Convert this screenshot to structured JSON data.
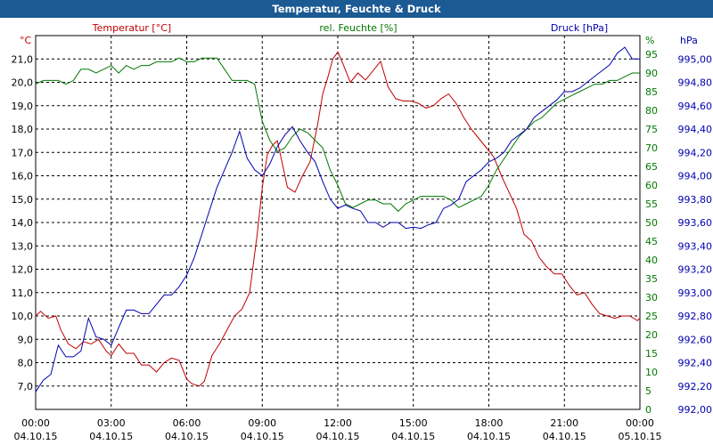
{
  "window": {
    "title": "Temperatur, Feuchte & Druck"
  },
  "colors": {
    "temperature": "#c00000",
    "humidity": "#007800",
    "pressure": "#0000b0",
    "grid": "#000000",
    "axis_text": "#000000"
  },
  "chart_data": {
    "type": "line",
    "title": "Temperatur, Feuchte & Druck",
    "grid": true,
    "x_axis": {
      "range_hours": [
        0,
        24
      ],
      "ticks": [
        {
          "h": 0,
          "time": "00:00",
          "date": "04.10.15"
        },
        {
          "h": 3,
          "time": "03:00",
          "date": "04.10.15"
        },
        {
          "h": 6,
          "time": "06:00",
          "date": "04.10.15"
        },
        {
          "h": 9,
          "time": "09:00",
          "date": "04.10.15"
        },
        {
          "h": 12,
          "time": "12:00",
          "date": "04.10.15"
        },
        {
          "h": 15,
          "time": "15:00",
          "date": "04.10.15"
        },
        {
          "h": 18,
          "time": "18:00",
          "date": "04.10.15"
        },
        {
          "h": 21,
          "time": "21:00",
          "date": "04.10.15"
        },
        {
          "h": 24,
          "time": "00:00",
          "date": "05.10.15"
        }
      ]
    },
    "axes": {
      "temperature": {
        "label": "Temperatur [°C]",
        "unit": "°C",
        "ylim": [
          6.0,
          22.0
        ],
        "ticks": [
          "7,0",
          "8,0",
          "9,0",
          "10,0",
          "11,0",
          "12,0",
          "13,0",
          "14,0",
          "15,0",
          "16,0",
          "17,0",
          "18,0",
          "19,0",
          "20,0",
          "21,0"
        ],
        "tick_values": [
          7,
          8,
          9,
          10,
          11,
          12,
          13,
          14,
          15,
          16,
          17,
          18,
          19,
          20,
          21
        ]
      },
      "humidity": {
        "label": "rel. Feuchte [%]",
        "unit": "%",
        "ylim": [
          0,
          100
        ],
        "ticks": [
          "0",
          "5",
          "10",
          "15",
          "20",
          "25",
          "30",
          "35",
          "40",
          "45",
          "50",
          "55",
          "60",
          "65",
          "70",
          "75",
          "80",
          "85",
          "90",
          "95"
        ],
        "tick_values": [
          0,
          5,
          10,
          15,
          20,
          25,
          30,
          35,
          40,
          45,
          50,
          55,
          60,
          65,
          70,
          75,
          80,
          85,
          90,
          95
        ]
      },
      "pressure": {
        "label": "Druck [hPa]",
        "unit": "hPa",
        "ylim": [
          992.0,
          995.2
        ],
        "ticks": [
          "992,00",
          "992,20",
          "992,40",
          "992,60",
          "992,80",
          "993,00",
          "993,20",
          "993,40",
          "993,60",
          "993,80",
          "994,00",
          "994,20",
          "994,40",
          "994,60",
          "994,80",
          "995,00"
        ],
        "tick_values": [
          992.0,
          992.2,
          992.4,
          992.6,
          992.8,
          993.0,
          993.2,
          993.4,
          993.6,
          993.8,
          994.0,
          994.2,
          994.4,
          994.6,
          994.8,
          995.0
        ]
      }
    },
    "series": [
      {
        "name": "Temperatur [°C]",
        "axis": "temperature",
        "x": [
          0,
          0.2,
          0.5,
          0.8,
          1,
          1.3,
          1.6,
          1.9,
          2.2,
          2.5,
          2.8,
          3.0,
          3.3,
          3.6,
          3.9,
          4.2,
          4.5,
          4.8,
          5.1,
          5.4,
          5.7,
          6.0,
          6.2,
          6.5,
          6.7,
          7.0,
          7.3,
          7.6,
          7.9,
          8.2,
          8.5,
          8.8,
          9.0,
          9.2,
          9.4,
          9.6,
          9.8,
          10.0,
          10.3,
          10.6,
          10.9,
          11.2,
          11.4,
          11.6,
          11.8,
          12.0,
          12.2,
          12.5,
          12.8,
          13.1,
          13.4,
          13.7,
          14.0,
          14.3,
          14.6,
          14.9,
          15.2,
          15.5,
          15.8,
          16.1,
          16.4,
          16.7,
          17.0,
          17.3,
          17.6,
          17.9,
          18.2,
          18.5,
          18.8,
          19.1,
          19.4,
          19.7,
          20.0,
          20.3,
          20.6,
          20.9,
          21.2,
          21.5,
          21.8,
          22.1,
          22.4,
          22.7,
          23.0,
          23.3,
          23.6,
          23.9,
          24.0
        ],
        "values": [
          10.0,
          10.2,
          9.9,
          10.0,
          9.4,
          8.8,
          8.6,
          8.9,
          8.8,
          9.0,
          8.5,
          8.3,
          8.8,
          8.4,
          8.4,
          7.9,
          7.9,
          7.6,
          8.0,
          8.2,
          8.1,
          7.3,
          7.1,
          7.0,
          7.2,
          8.3,
          8.8,
          9.4,
          10.0,
          10.3,
          11.0,
          13.5,
          15.5,
          16.9,
          17.3,
          17.5,
          16.5,
          15.5,
          15.3,
          16.0,
          16.6,
          18.2,
          19.5,
          20.2,
          21.0,
          21.3,
          20.8,
          20.0,
          20.4,
          20.1,
          20.5,
          20.9,
          19.8,
          19.3,
          19.2,
          19.2,
          19.1,
          18.9,
          19.0,
          19.3,
          19.5,
          19.1,
          18.5,
          18.0,
          17.6,
          17.2,
          16.8,
          16.0,
          15.3,
          14.6,
          13.5,
          13.2,
          12.5,
          12.1,
          11.8,
          11.8,
          11.3,
          10.9,
          11.0,
          10.5,
          10.1,
          10.0,
          9.9,
          10.0,
          10.0,
          9.8,
          9.9
        ]
      },
      {
        "name": "rel. Feuchte [%]",
        "axis": "humidity",
        "x": [
          0,
          0.3,
          0.6,
          0.9,
          1.2,
          1.5,
          1.8,
          2.1,
          2.4,
          2.7,
          3.0,
          3.3,
          3.6,
          3.9,
          4.2,
          4.5,
          4.8,
          5.1,
          5.4,
          5.7,
          6.0,
          6.3,
          6.6,
          6.9,
          7.2,
          7.5,
          7.8,
          8.1,
          8.4,
          8.7,
          9.0,
          9.3,
          9.6,
          9.9,
          10.2,
          10.5,
          10.8,
          11.1,
          11.4,
          11.7,
          12.0,
          12.3,
          12.6,
          12.9,
          13.2,
          13.5,
          13.8,
          14.1,
          14.4,
          14.7,
          15.0,
          15.3,
          15.6,
          15.9,
          16.2,
          16.5,
          16.8,
          17.1,
          17.4,
          17.7,
          18.0,
          18.3,
          18.6,
          18.9,
          19.2,
          19.5,
          19.8,
          20.1,
          20.4,
          20.7,
          21.0,
          21.3,
          21.6,
          21.9,
          22.2,
          22.5,
          22.8,
          23.1,
          23.4,
          23.7,
          24.0
        ],
        "values": [
          87,
          88,
          88,
          88,
          87,
          88,
          91,
          91,
          90,
          91,
          92,
          90,
          92,
          91,
          92,
          92,
          93,
          93,
          93,
          94,
          93,
          93,
          94,
          94,
          94,
          91,
          88,
          88,
          88,
          87,
          77,
          72,
          69,
          70,
          73,
          75,
          74,
          72,
          70,
          64,
          60,
          55,
          54,
          55,
          56,
          56,
          55,
          55,
          53,
          55,
          56,
          57,
          57,
          57,
          57,
          56,
          54,
          55,
          56,
          57,
          60,
          64,
          67,
          70,
          73,
          75,
          77,
          78,
          80,
          82,
          83,
          84,
          85,
          86,
          87,
          87,
          88,
          88,
          89,
          90,
          90
        ]
      },
      {
        "name": "Druck [hPa]",
        "axis": "pressure",
        "x": [
          0,
          0.3,
          0.6,
          0.9,
          1.2,
          1.5,
          1.8,
          2.1,
          2.4,
          2.7,
          3.0,
          3.3,
          3.6,
          3.9,
          4.2,
          4.5,
          4.8,
          5.1,
          5.4,
          5.7,
          6.0,
          6.3,
          6.6,
          6.9,
          7.2,
          7.5,
          7.8,
          8.1,
          8.4,
          8.7,
          9.0,
          9.3,
          9.6,
          9.9,
          10.2,
          10.5,
          10.8,
          11.1,
          11.4,
          11.7,
          12.0,
          12.3,
          12.6,
          12.9,
          13.2,
          13.5,
          13.8,
          14.1,
          14.4,
          14.7,
          15.0,
          15.3,
          15.6,
          15.9,
          16.2,
          16.5,
          16.8,
          17.1,
          17.4,
          17.7,
          18.0,
          18.3,
          18.6,
          18.9,
          19.2,
          19.5,
          19.8,
          20.1,
          20.4,
          20.7,
          21.0,
          21.3,
          21.6,
          21.9,
          22.2,
          22.5,
          22.8,
          23.1,
          23.4,
          23.7,
          24.0
        ],
        "values": [
          992.15,
          992.25,
          992.3,
          992.55,
          992.45,
          992.45,
          992.5,
          992.78,
          992.62,
          992.6,
          992.55,
          992.7,
          992.85,
          992.85,
          992.82,
          992.82,
          992.9,
          992.98,
          992.98,
          993.05,
          993.15,
          993.3,
          993.5,
          993.7,
          993.9,
          994.05,
          994.2,
          994.38,
          994.15,
          994.05,
          994.0,
          994.1,
          994.25,
          994.35,
          994.42,
          994.3,
          994.2,
          994.12,
          993.95,
          993.8,
          993.72,
          993.75,
          993.72,
          993.7,
          993.6,
          993.6,
          993.56,
          993.6,
          993.6,
          993.55,
          993.56,
          993.55,
          993.58,
          993.6,
          993.72,
          993.75,
          993.8,
          993.95,
          994.0,
          994.05,
          994.12,
          994.15,
          994.2,
          994.3,
          994.35,
          994.4,
          994.5,
          994.55,
          994.6,
          994.65,
          994.72,
          994.72,
          994.75,
          994.8,
          994.85,
          994.9,
          994.95,
          995.05,
          995.1,
          995.0,
          995.0
        ]
      }
    ]
  }
}
